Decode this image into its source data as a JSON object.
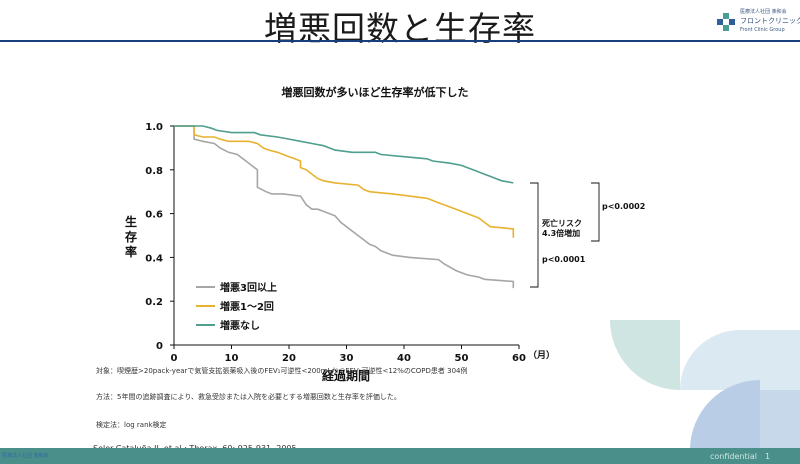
{
  "slide": {
    "title": "増悪回数と生存率",
    "logo": {
      "org": "医療法人社団 楽和会",
      "name": "フロントクリニック グループ",
      "sub": "Front Clinic Group"
    }
  },
  "chart_data": {
    "type": "line",
    "title": "増悪回数が多いほど生存率が低下した",
    "xlabel": "経過期間",
    "x_unit": "（月）",
    "ylabel": "生存率",
    "xlim": [
      0,
      60
    ],
    "ylim": [
      0,
      1.0
    ],
    "xticks": [
      0,
      10,
      20,
      30,
      40,
      50,
      60
    ],
    "yticks": [
      0,
      0.2,
      0.4,
      0.6,
      0.8,
      1.0
    ],
    "ytick_labels": [
      "0",
      "0.2",
      "0.4",
      "0.6",
      "0.8",
      "1.0"
    ],
    "grid": false,
    "legend_position": "bottom-left",
    "series": [
      {
        "name": "増悪3回以上",
        "color": "#a6a6a6",
        "points": [
          [
            0,
            1.0
          ],
          [
            3.5,
            1.0
          ],
          [
            3.5,
            0.94
          ],
          [
            5,
            0.93
          ],
          [
            7,
            0.92
          ],
          [
            8,
            0.9
          ],
          [
            9.5,
            0.88
          ],
          [
            11,
            0.87
          ],
          [
            12.5,
            0.84
          ],
          [
            13.5,
            0.82
          ],
          [
            14.5,
            0.8
          ],
          [
            14.5,
            0.72
          ],
          [
            16,
            0.7
          ],
          [
            17,
            0.69
          ],
          [
            19,
            0.69
          ],
          [
            22,
            0.68
          ],
          [
            23,
            0.64
          ],
          [
            24,
            0.62
          ],
          [
            25,
            0.62
          ],
          [
            26,
            0.61
          ],
          [
            27,
            0.6
          ],
          [
            28,
            0.59
          ],
          [
            29,
            0.56
          ],
          [
            30,
            0.54
          ],
          [
            31,
            0.52
          ],
          [
            32,
            0.5
          ],
          [
            33,
            0.48
          ],
          [
            34,
            0.46
          ],
          [
            35,
            0.45
          ],
          [
            36,
            0.43
          ],
          [
            37,
            0.42
          ],
          [
            38,
            0.41
          ],
          [
            41,
            0.4
          ],
          [
            46,
            0.39
          ],
          [
            47,
            0.37
          ],
          [
            49,
            0.34
          ],
          [
            50,
            0.33
          ],
          [
            51,
            0.32
          ],
          [
            53,
            0.31
          ],
          [
            54,
            0.3
          ],
          [
            59,
            0.29
          ],
          [
            59,
            0.26
          ]
        ]
      },
      {
        "name": "増悪1～2回",
        "color": "#e8b231",
        "points": [
          [
            0,
            1.0
          ],
          [
            3.5,
            1.0
          ],
          [
            3.5,
            0.96
          ],
          [
            5,
            0.95
          ],
          [
            7,
            0.95
          ],
          [
            8,
            0.94
          ],
          [
            9.5,
            0.93
          ],
          [
            13,
            0.93
          ],
          [
            14.5,
            0.92
          ],
          [
            15.5,
            0.9
          ],
          [
            16.5,
            0.89
          ],
          [
            18,
            0.88
          ],
          [
            20,
            0.86
          ],
          [
            21,
            0.85
          ],
          [
            22,
            0.84
          ],
          [
            22,
            0.81
          ],
          [
            23,
            0.8
          ],
          [
            24,
            0.78
          ],
          [
            25,
            0.76
          ],
          [
            26,
            0.75
          ],
          [
            28,
            0.74
          ],
          [
            32,
            0.73
          ],
          [
            33,
            0.71
          ],
          [
            34,
            0.7
          ],
          [
            38,
            0.69
          ],
          [
            41,
            0.68
          ],
          [
            44,
            0.67
          ],
          [
            45,
            0.66
          ],
          [
            46,
            0.65
          ],
          [
            48,
            0.63
          ],
          [
            50,
            0.61
          ],
          [
            51,
            0.6
          ],
          [
            52,
            0.59
          ],
          [
            53,
            0.58
          ],
          [
            54,
            0.56
          ],
          [
            55,
            0.54
          ],
          [
            59,
            0.53
          ],
          [
            59,
            0.49
          ]
        ]
      },
      {
        "name": "増悪なし",
        "color": "#4f9e8f",
        "points": [
          [
            0,
            1.0
          ],
          [
            5,
            1.0
          ],
          [
            6.5,
            0.99
          ],
          [
            7.5,
            0.98
          ],
          [
            10,
            0.97
          ],
          [
            14,
            0.97
          ],
          [
            15,
            0.96
          ],
          [
            18,
            0.95
          ],
          [
            20,
            0.94
          ],
          [
            22,
            0.93
          ],
          [
            24,
            0.92
          ],
          [
            26,
            0.91
          ],
          [
            27,
            0.9
          ],
          [
            28,
            0.89
          ],
          [
            31,
            0.88
          ],
          [
            35,
            0.88
          ],
          [
            36,
            0.87
          ],
          [
            40,
            0.86
          ],
          [
            44,
            0.85
          ],
          [
            45,
            0.84
          ],
          [
            48,
            0.83
          ],
          [
            50,
            0.82
          ],
          [
            51,
            0.81
          ],
          [
            52,
            0.8
          ],
          [
            53,
            0.79
          ],
          [
            54,
            0.78
          ],
          [
            55,
            0.77
          ],
          [
            56,
            0.76
          ],
          [
            57,
            0.75
          ],
          [
            59,
            0.74
          ]
        ]
      }
    ],
    "annotations": [
      {
        "text": "p<0.0002"
      },
      {
        "text": "死亡リスク"
      },
      {
        "text": "4.3倍増加"
      },
      {
        "text": "p<0.0001"
      }
    ]
  },
  "notes": {
    "subjects": "対象：喫煙歴>20pack-yearで気管支拡張薬吸入後のFEV₁可逆性<200mLかつFEV₁可逆性<12%のCOPD患者 304例",
    "method": "方法：5年間の追跡調査により、救急受診または入院を必要とする増悪回数と生存率を評価した。",
    "test": "検定法：log rank検定",
    "citation": "Soler-Cataluña JJ. et al.: Thorax. 60: 925-931. 2005"
  },
  "footer": {
    "left": "医療法人社団 楽和会",
    "right": "confidential　1"
  }
}
